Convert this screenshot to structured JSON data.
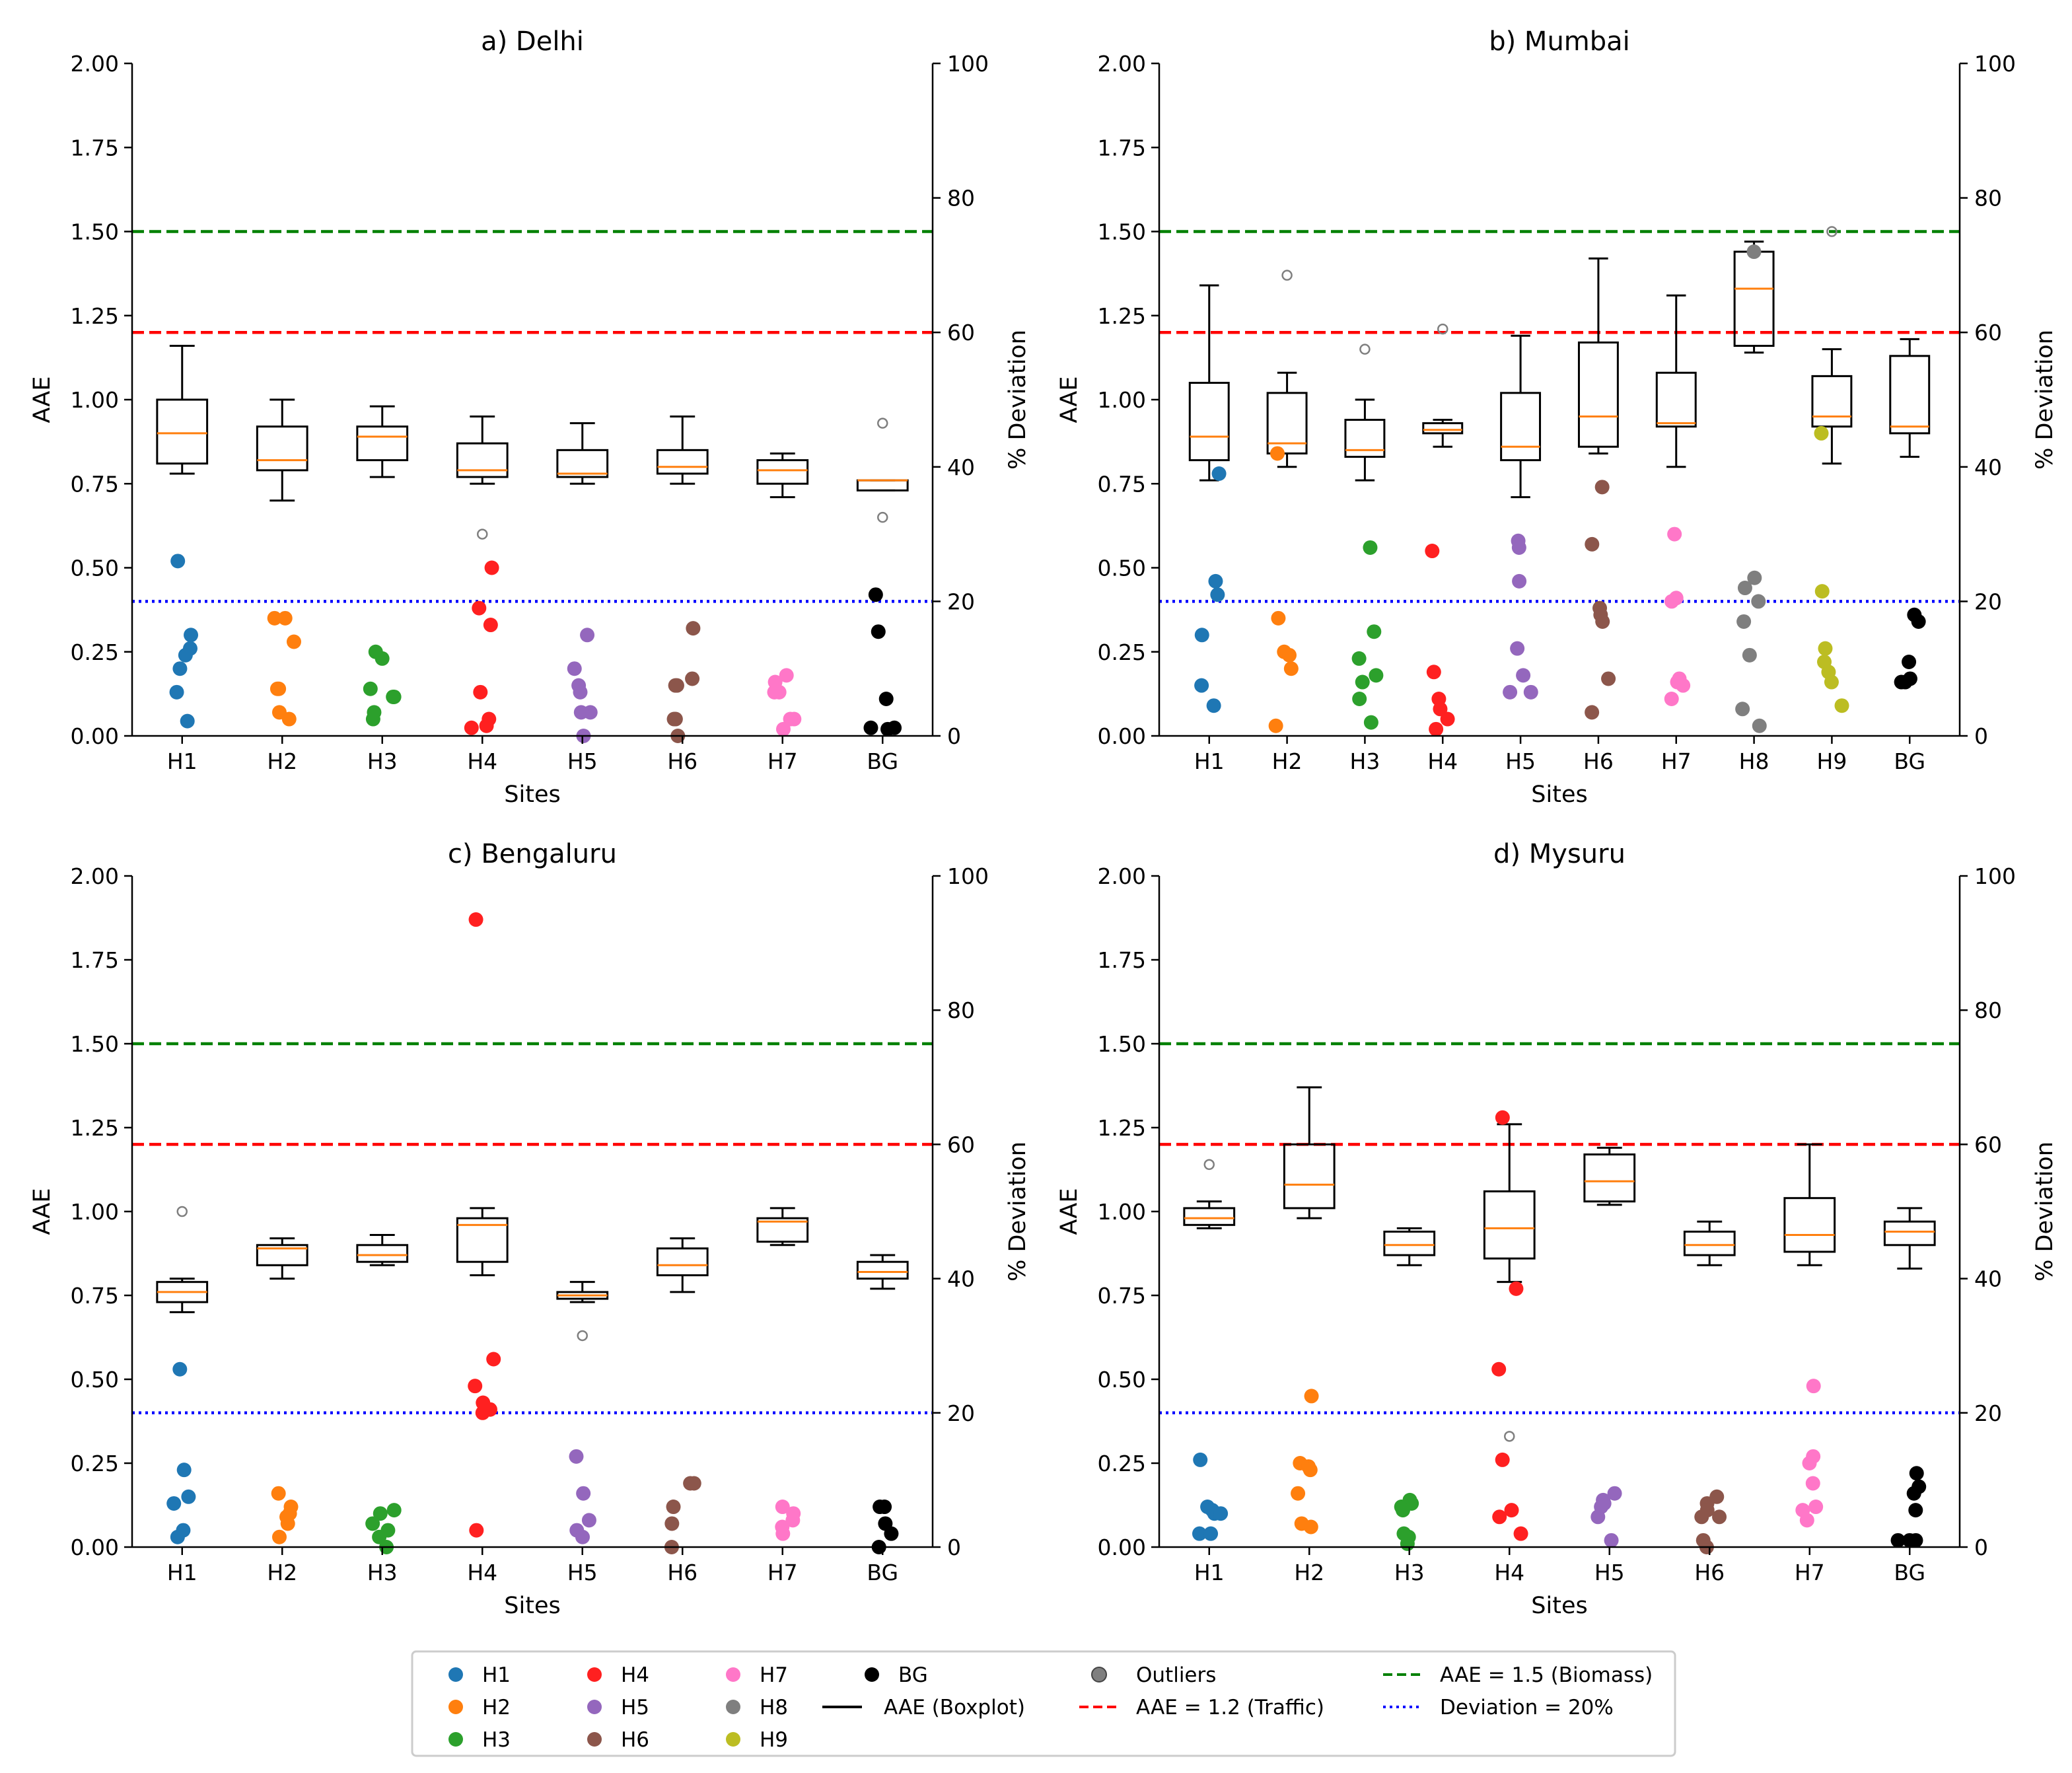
{
  "chart_data": [
    {
      "type": "box+scatter",
      "title": "a) Delhi",
      "xlabel": "Sites",
      "ylabel": "AAE",
      "y2label": "% Deviation",
      "ylim": [
        0,
        2.0
      ],
      "y2lim": [
        0,
        100
      ],
      "yticks": [
        "0.00",
        "0.25",
        "0.50",
        "0.75",
        "1.00",
        "1.25",
        "1.50",
        "1.75",
        "2.00"
      ],
      "y2ticks": [
        "0",
        "20",
        "40",
        "60",
        "80",
        "100"
      ],
      "categories": [
        "H1",
        "H2",
        "H3",
        "H4",
        "H5",
        "H6",
        "H7",
        "BG"
      ],
      "boxes": [
        {
          "site": "H1",
          "min": 0.78,
          "q1": 0.81,
          "median": 0.9,
          "q3": 1.0,
          "max": 1.16,
          "outliers": []
        },
        {
          "site": "H2",
          "min": 0.7,
          "q1": 0.79,
          "median": 0.82,
          "q3": 0.92,
          "max": 1.0,
          "outliers": []
        },
        {
          "site": "H3",
          "min": 0.77,
          "q1": 0.82,
          "median": 0.89,
          "q3": 0.92,
          "max": 0.98,
          "outliers": []
        },
        {
          "site": "H4",
          "min": 0.75,
          "q1": 0.77,
          "median": 0.79,
          "q3": 0.87,
          "max": 0.95,
          "outliers": [
            0.6
          ]
        },
        {
          "site": "H5",
          "min": 0.75,
          "q1": 0.77,
          "median": 0.78,
          "q3": 0.85,
          "max": 0.93,
          "outliers": []
        },
        {
          "site": "H6",
          "min": 0.75,
          "q1": 0.78,
          "median": 0.8,
          "q3": 0.85,
          "max": 0.95,
          "outliers": []
        },
        {
          "site": "H7",
          "min": 0.71,
          "q1": 0.75,
          "median": 0.79,
          "q3": 0.82,
          "max": 0.84,
          "outliers": []
        },
        {
          "site": "BG",
          "min": 0.73,
          "q1": 0.73,
          "median": 0.76,
          "q3": 0.76,
          "max": 0.76,
          "outliers": [
            0.93,
            0.65
          ]
        }
      ],
      "deviation_points": [
        {
          "site": "H1",
          "values": [
            26,
            15,
            13,
            12,
            10,
            6.5,
            2.2
          ]
        },
        {
          "site": "H2",
          "values": [
            17.5,
            17.5,
            14,
            7,
            7,
            3.5,
            2.5
          ]
        },
        {
          "site": "H3",
          "values": [
            12.5,
            11.5,
            7,
            5.8,
            5.8,
            3.5,
            2.5
          ]
        },
        {
          "site": "H4",
          "values": [
            25,
            19,
            16.5,
            6.5,
            2.5,
            1.5,
            1.2
          ]
        },
        {
          "site": "H5",
          "values": [
            15,
            10,
            7.5,
            6.5,
            3.5,
            3.5,
            0
          ]
        },
        {
          "site": "H6",
          "values": [
            16,
            8.5,
            7.5,
            7.5,
            2.5,
            2.5,
            0
          ]
        },
        {
          "site": "H7",
          "values": [
            9,
            8,
            6.5,
            6.5,
            2.5,
            2.5,
            1
          ]
        },
        {
          "site": "BG",
          "values": [
            21,
            15.5,
            5.5,
            1.2,
            1.2,
            1
          ]
        }
      ]
    },
    {
      "type": "box+scatter",
      "title": "b) Mumbai",
      "xlabel": "Sites",
      "ylabel": "AAE",
      "y2label": "% Deviation",
      "ylim": [
        0,
        2.0
      ],
      "y2lim": [
        0,
        100
      ],
      "yticks": [
        "0.00",
        "0.25",
        "0.50",
        "0.75",
        "1.00",
        "1.25",
        "1.50",
        "1.75",
        "2.00"
      ],
      "y2ticks": [
        "0",
        "20",
        "40",
        "60",
        "80",
        "100"
      ],
      "categories": [
        "H1",
        "H2",
        "H3",
        "H4",
        "H5",
        "H6",
        "H7",
        "H8",
        "H9",
        "BG"
      ],
      "boxes": [
        {
          "site": "H1",
          "min": 0.76,
          "q1": 0.82,
          "median": 0.89,
          "q3": 1.05,
          "max": 1.34,
          "outliers": []
        },
        {
          "site": "H2",
          "min": 0.8,
          "q1": 0.84,
          "median": 0.87,
          "q3": 1.02,
          "max": 1.08,
          "outliers": [
            1.37
          ]
        },
        {
          "site": "H3",
          "min": 0.76,
          "q1": 0.83,
          "median": 0.85,
          "q3": 0.94,
          "max": 1.0,
          "outliers": [
            1.15
          ]
        },
        {
          "site": "H4",
          "min": 0.86,
          "q1": 0.9,
          "median": 0.91,
          "q3": 0.93,
          "max": 0.94,
          "outliers": [
            1.21
          ]
        },
        {
          "site": "H5",
          "min": 0.71,
          "q1": 0.82,
          "median": 0.86,
          "q3": 1.02,
          "max": 1.19,
          "outliers": []
        },
        {
          "site": "H6",
          "min": 0.84,
          "q1": 0.86,
          "median": 0.95,
          "q3": 1.17,
          "max": 1.42,
          "outliers": []
        },
        {
          "site": "H7",
          "min": 0.8,
          "q1": 0.92,
          "median": 0.93,
          "q3": 1.08,
          "max": 1.31,
          "outliers": []
        },
        {
          "site": "H8",
          "min": 1.14,
          "q1": 1.16,
          "median": 1.33,
          "q3": 1.44,
          "max": 1.47,
          "outliers": []
        },
        {
          "site": "H9",
          "min": 0.81,
          "q1": 0.92,
          "median": 0.95,
          "q3": 1.07,
          "max": 1.15,
          "outliers": [
            1.5
          ]
        },
        {
          "site": "BG",
          "min": 0.83,
          "q1": 0.9,
          "median": 0.92,
          "q3": 1.13,
          "max": 1.18,
          "outliers": []
        }
      ],
      "deviation_points": [
        {
          "site": "H1",
          "values": [
            39,
            23,
            21,
            15,
            7.5,
            4.5
          ]
        },
        {
          "site": "H2",
          "values": [
            42,
            17.5,
            12.5,
            12,
            10,
            1.5
          ]
        },
        {
          "site": "H3",
          "values": [
            28,
            15.5,
            11.5,
            9,
            8,
            5.5,
            2
          ]
        },
        {
          "site": "H4",
          "values": [
            27.5,
            9.5,
            5.5,
            4,
            2.5,
            1
          ]
        },
        {
          "site": "H5",
          "values": [
            29,
            28,
            23,
            13,
            9,
            6.5,
            6.5
          ]
        },
        {
          "site": "H6",
          "values": [
            37,
            28.5,
            19,
            18,
            17,
            8.5,
            3.5
          ]
        },
        {
          "site": "H7",
          "values": [
            30,
            20.5,
            20,
            8.5,
            8,
            7.5,
            5.5
          ]
        },
        {
          "site": "H8",
          "values": [
            72,
            23.5,
            22,
            20,
            17,
            12,
            4,
            1.5
          ]
        },
        {
          "site": "H9",
          "values": [
            45,
            21.5,
            13,
            11,
            9.5,
            8,
            4.5
          ]
        },
        {
          "site": "BG",
          "values": [
            18,
            17,
            11,
            8.5,
            8,
            8
          ]
        }
      ]
    },
    {
      "type": "box+scatter",
      "title": "c) Bengaluru",
      "xlabel": "Sites",
      "ylabel": "AAE",
      "y2label": "% Deviation",
      "ylim": [
        0,
        2.0
      ],
      "y2lim": [
        0,
        100
      ],
      "yticks": [
        "0.00",
        "0.25",
        "0.50",
        "0.75",
        "1.00",
        "1.25",
        "1.50",
        "1.75",
        "2.00"
      ],
      "y2ticks": [
        "0",
        "20",
        "40",
        "60",
        "80",
        "100"
      ],
      "categories": [
        "H1",
        "H2",
        "H3",
        "H4",
        "H5",
        "H6",
        "H7",
        "BG"
      ],
      "boxes": [
        {
          "site": "H1",
          "min": 0.7,
          "q1": 0.73,
          "median": 0.76,
          "q3": 0.79,
          "max": 0.8,
          "outliers": [
            1.0
          ]
        },
        {
          "site": "H2",
          "min": 0.8,
          "q1": 0.84,
          "median": 0.89,
          "q3": 0.9,
          "max": 0.92,
          "outliers": []
        },
        {
          "site": "H3",
          "min": 0.84,
          "q1": 0.85,
          "median": 0.87,
          "q3": 0.9,
          "max": 0.93,
          "outliers": []
        },
        {
          "site": "H4",
          "min": 0.81,
          "q1": 0.85,
          "median": 0.96,
          "q3": 0.98,
          "max": 1.01,
          "outliers": []
        },
        {
          "site": "H5",
          "min": 0.73,
          "q1": 0.74,
          "median": 0.75,
          "q3": 0.76,
          "max": 0.79,
          "outliers": [
            0.63
          ]
        },
        {
          "site": "H6",
          "min": 0.76,
          "q1": 0.81,
          "median": 0.84,
          "q3": 0.89,
          "max": 0.92,
          "outliers": []
        },
        {
          "site": "H7",
          "min": 0.9,
          "q1": 0.91,
          "median": 0.97,
          "q3": 0.98,
          "max": 1.01,
          "outliers": []
        },
        {
          "site": "BG",
          "min": 0.77,
          "q1": 0.8,
          "median": 0.82,
          "q3": 0.85,
          "max": 0.87,
          "outliers": []
        }
      ],
      "deviation_points": [
        {
          "site": "H1",
          "values": [
            26.5,
            11.5,
            7.5,
            6.5,
            2.5,
            1.5
          ]
        },
        {
          "site": "H2",
          "values": [
            8,
            6,
            5,
            4.5,
            3.5,
            1.5
          ]
        },
        {
          "site": "H3",
          "values": [
            5.5,
            5,
            3.5,
            2.5,
            1.5,
            0
          ]
        },
        {
          "site": "H4",
          "values": [
            93.5,
            28,
            24,
            21.5,
            20.5,
            20,
            2.5
          ]
        },
        {
          "site": "H5",
          "values": [
            13.5,
            8,
            4,
            2.5,
            1.5
          ]
        },
        {
          "site": "H6",
          "values": [
            9.5,
            9.5,
            6,
            3.5,
            0
          ]
        },
        {
          "site": "H7",
          "values": [
            6,
            5,
            4,
            3,
            2
          ]
        },
        {
          "site": "BG",
          "values": [
            6,
            6,
            3.5,
            2,
            0
          ]
        }
      ]
    },
    {
      "type": "box+scatter",
      "title": "d) Mysuru",
      "xlabel": "Sites",
      "ylabel": "AAE",
      "y2label": "% Deviation",
      "ylim": [
        0,
        2.0
      ],
      "y2lim": [
        0,
        100
      ],
      "yticks": [
        "0.00",
        "0.25",
        "0.50",
        "0.75",
        "1.00",
        "1.25",
        "1.50",
        "1.75",
        "2.00"
      ],
      "y2ticks": [
        "0",
        "20",
        "40",
        "60",
        "80",
        "100"
      ],
      "categories": [
        "H1",
        "H2",
        "H3",
        "H4",
        "H5",
        "H6",
        "H7",
        "BG"
      ],
      "boxes": [
        {
          "site": "H1",
          "min": 0.95,
          "q1": 0.96,
          "median": 0.98,
          "q3": 1.01,
          "max": 1.03,
          "outliers": [
            1.14
          ]
        },
        {
          "site": "H2",
          "min": 0.98,
          "q1": 1.01,
          "median": 1.08,
          "q3": 1.2,
          "max": 1.37,
          "outliers": []
        },
        {
          "site": "H3",
          "min": 0.84,
          "q1": 0.87,
          "median": 0.9,
          "q3": 0.94,
          "max": 0.95,
          "outliers": []
        },
        {
          "site": "H4",
          "min": 0.79,
          "q1": 0.86,
          "median": 0.95,
          "q3": 1.06,
          "max": 1.26,
          "outliers": [
            0.33
          ]
        },
        {
          "site": "H5",
          "min": 1.02,
          "q1": 1.03,
          "median": 1.09,
          "q3": 1.17,
          "max": 1.19,
          "outliers": []
        },
        {
          "site": "H6",
          "min": 0.84,
          "q1": 0.87,
          "median": 0.9,
          "q3": 0.94,
          "max": 0.97,
          "outliers": []
        },
        {
          "site": "H7",
          "min": 0.84,
          "q1": 0.88,
          "median": 0.93,
          "q3": 1.04,
          "max": 1.2,
          "outliers": []
        },
        {
          "site": "BG",
          "min": 0.83,
          "q1": 0.9,
          "median": 0.94,
          "q3": 0.97,
          "max": 1.01,
          "outliers": []
        }
      ],
      "deviation_points": [
        {
          "site": "H1",
          "values": [
            13,
            6,
            5.5,
            5,
            5,
            2,
            2
          ]
        },
        {
          "site": "H2",
          "values": [
            22.5,
            12.5,
            12,
            11.5,
            8,
            3.5,
            3
          ]
        },
        {
          "site": "H3",
          "values": [
            7,
            6.5,
            6,
            5.5,
            2,
            1.5,
            0.5
          ]
        },
        {
          "site": "H4",
          "values": [
            64,
            38.5,
            26.5,
            13,
            5.5,
            4.5,
            2
          ]
        },
        {
          "site": "H5",
          "values": [
            8,
            7,
            6.5,
            6,
            4.5,
            1
          ]
        },
        {
          "site": "H6",
          "values": [
            7.5,
            6.5,
            5.5,
            4.5,
            4.5,
            1,
            0
          ]
        },
        {
          "site": "H7",
          "values": [
            24,
            13.5,
            12.5,
            9.5,
            6,
            5.5,
            4
          ]
        },
        {
          "site": "BG",
          "values": [
            11,
            9,
            8,
            5.5,
            1,
            1,
            1
          ]
        }
      ]
    }
  ],
  "reference_lines": {
    "biomass": {
      "aae": 1.5,
      "label": "AAE = 1.5 (Biomass)",
      "color": "#008000"
    },
    "traffic": {
      "aae": 1.2,
      "label": "AAE = 1.2 (Traffic)",
      "color": "#ff0000"
    },
    "deviation": {
      "pct": 20,
      "label": "Deviation = 20%",
      "color": "#0000ff"
    }
  },
  "colors": {
    "H1": "#1f77b4",
    "H2": "#ff7f0e",
    "H3": "#2ca02c",
    "H4": "#ff2020",
    "H5": "#9467bd",
    "H6": "#8c564b",
    "H7": "#ff77c8",
    "H8": "#7f7f7f",
    "H9": "#bcbd22",
    "BG": "#000000",
    "outlier": "#7f7f7f",
    "median": "#ff7f0e"
  },
  "legend": {
    "sites": [
      {
        "key": "H1",
        "label": "H1"
      },
      {
        "key": "H2",
        "label": "H2"
      },
      {
        "key": "H3",
        "label": "H3"
      },
      {
        "key": "H4",
        "label": "H4"
      },
      {
        "key": "H5",
        "label": "H5"
      },
      {
        "key": "H6",
        "label": "H6"
      },
      {
        "key": "H7",
        "label": "H7"
      },
      {
        "key": "H8",
        "label": "H8"
      },
      {
        "key": "H9",
        "label": "H9"
      },
      {
        "key": "BG",
        "label": "BG"
      }
    ],
    "boxplot_label": "AAE (Boxplot)",
    "outliers_label": "Outliers"
  }
}
